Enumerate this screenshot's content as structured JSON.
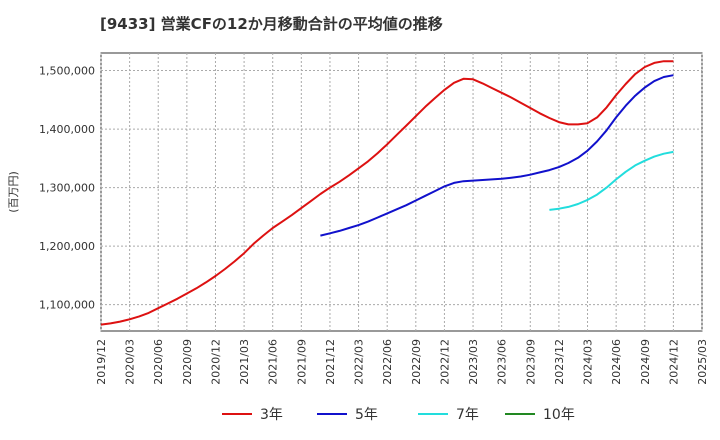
{
  "chart_data": {
    "type": "line",
    "title": "[9433]  営業CFの12か月移動合計の平均値の推移",
    "ylabel": "(百万円)",
    "xlabel": "",
    "ylim": [
      1055000,
      1530000
    ],
    "y_ticks": [
      1100000,
      1200000,
      1300000,
      1400000,
      1500000
    ],
    "y_tick_labels": [
      "1,100,000",
      "1,200,000",
      "1,300,000",
      "1,400,000",
      "1,500,000"
    ],
    "x_ticks": [
      "2019/12",
      "2020/03",
      "2020/06",
      "2020/09",
      "2020/12",
      "2021/03",
      "2021/06",
      "2021/09",
      "2021/12",
      "2022/03",
      "2022/06",
      "2022/09",
      "2022/12",
      "2023/03",
      "2023/06",
      "2023/09",
      "2023/12",
      "2024/03",
      "2024/06",
      "2024/09",
      "2024/12",
      "2025/03"
    ],
    "grid": true,
    "legend_position": "bottom",
    "series": [
      {
        "name": "3年",
        "color": "#dd1111",
        "points": [
          [
            "2019/12",
            1066000
          ],
          [
            "2020/01",
            1068000
          ],
          [
            "2020/02",
            1071000
          ],
          [
            "2020/03",
            1075000
          ],
          [
            "2020/04",
            1080000
          ],
          [
            "2020/05",
            1086000
          ],
          [
            "2020/06",
            1094000
          ],
          [
            "2020/07",
            1102000
          ],
          [
            "2020/08",
            1110000
          ],
          [
            "2020/09",
            1119000
          ],
          [
            "2020/10",
            1128000
          ],
          [
            "2020/11",
            1138000
          ],
          [
            "2020/12",
            1149000
          ],
          [
            "2021/01",
            1161000
          ],
          [
            "2021/02",
            1174000
          ],
          [
            "2021/03",
            1188000
          ],
          [
            "2021/04",
            1204000
          ],
          [
            "2021/05",
            1218000
          ],
          [
            "2021/06",
            1231000
          ],
          [
            "2021/07",
            1242000
          ],
          [
            "2021/08",
            1253000
          ],
          [
            "2021/09",
            1265000
          ],
          [
            "2021/10",
            1277000
          ],
          [
            "2021/11",
            1289000
          ],
          [
            "2021/12",
            1300000
          ],
          [
            "2022/01",
            1310000
          ],
          [
            "2022/02",
            1321000
          ],
          [
            "2022/03",
            1333000
          ],
          [
            "2022/04",
            1345000
          ],
          [
            "2022/05",
            1359000
          ],
          [
            "2022/06",
            1374000
          ],
          [
            "2022/07",
            1390000
          ],
          [
            "2022/08",
            1406000
          ],
          [
            "2022/09",
            1422000
          ],
          [
            "2022/10",
            1438000
          ],
          [
            "2022/11",
            1453000
          ],
          [
            "2022/12",
            1467000
          ],
          [
            "2023/01",
            1479000
          ],
          [
            "2023/02",
            1486000
          ],
          [
            "2023/03",
            1485000
          ],
          [
            "2023/04",
            1478000
          ],
          [
            "2023/05",
            1470000
          ],
          [
            "2023/06",
            1462000
          ],
          [
            "2023/07",
            1454000
          ],
          [
            "2023/08",
            1445000
          ],
          [
            "2023/09",
            1436000
          ],
          [
            "2023/10",
            1427000
          ],
          [
            "2023/11",
            1419000
          ],
          [
            "2023/12",
            1412000
          ],
          [
            "2024/01",
            1408000
          ],
          [
            "2024/02",
            1408000
          ],
          [
            "2024/03",
            1410000
          ],
          [
            "2024/04",
            1420000
          ],
          [
            "2024/05",
            1437000
          ],
          [
            "2024/06",
            1458000
          ],
          [
            "2024/07",
            1477000
          ],
          [
            "2024/08",
            1494000
          ],
          [
            "2024/09",
            1506000
          ],
          [
            "2024/10",
            1513000
          ],
          [
            "2024/11",
            1516000
          ],
          [
            "2024/12",
            1516000
          ]
        ]
      },
      {
        "name": "5年",
        "color": "#1111cc",
        "points": [
          [
            "2021/11",
            1218000
          ],
          [
            "2021/12",
            1222000
          ],
          [
            "2022/01",
            1226000
          ],
          [
            "2022/02",
            1231000
          ],
          [
            "2022/03",
            1236000
          ],
          [
            "2022/04",
            1242000
          ],
          [
            "2022/05",
            1249000
          ],
          [
            "2022/06",
            1256000
          ],
          [
            "2022/07",
            1263000
          ],
          [
            "2022/08",
            1270000
          ],
          [
            "2022/09",
            1278000
          ],
          [
            "2022/10",
            1286000
          ],
          [
            "2022/11",
            1294000
          ],
          [
            "2022/12",
            1302000
          ],
          [
            "2023/01",
            1308000
          ],
          [
            "2023/02",
            1311000
          ],
          [
            "2023/03",
            1312000
          ],
          [
            "2023/04",
            1313000
          ],
          [
            "2023/05",
            1314000
          ],
          [
            "2023/06",
            1315000
          ],
          [
            "2023/07",
            1317000
          ],
          [
            "2023/08",
            1319000
          ],
          [
            "2023/09",
            1322000
          ],
          [
            "2023/10",
            1326000
          ],
          [
            "2023/11",
            1330000
          ],
          [
            "2023/12",
            1335000
          ],
          [
            "2024/01",
            1342000
          ],
          [
            "2024/02",
            1351000
          ],
          [
            "2024/03",
            1363000
          ],
          [
            "2024/04",
            1379000
          ],
          [
            "2024/05",
            1398000
          ],
          [
            "2024/06",
            1420000
          ],
          [
            "2024/07",
            1440000
          ],
          [
            "2024/08",
            1457000
          ],
          [
            "2024/09",
            1471000
          ],
          [
            "2024/10",
            1482000
          ],
          [
            "2024/11",
            1489000
          ],
          [
            "2024/12",
            1492000
          ]
        ]
      },
      {
        "name": "7年",
        "color": "#22dddd",
        "points": [
          [
            "2023/11",
            1262000
          ],
          [
            "2023/12",
            1264000
          ],
          [
            "2024/01",
            1267000
          ],
          [
            "2024/02",
            1272000
          ],
          [
            "2024/03",
            1279000
          ],
          [
            "2024/04",
            1288000
          ],
          [
            "2024/05",
            1300000
          ],
          [
            "2024/06",
            1314000
          ],
          [
            "2024/07",
            1327000
          ],
          [
            "2024/08",
            1338000
          ],
          [
            "2024/09",
            1346000
          ],
          [
            "2024/10",
            1353000
          ],
          [
            "2024/11",
            1358000
          ],
          [
            "2024/12",
            1361000
          ]
        ]
      },
      {
        "name": "10年",
        "color": "#228822",
        "points": []
      }
    ]
  }
}
